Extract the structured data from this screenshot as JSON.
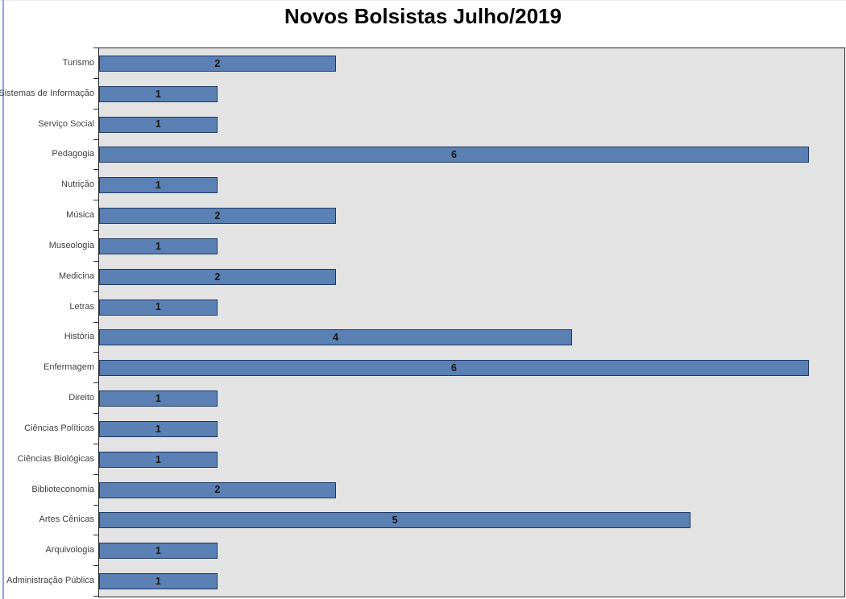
{
  "chart_data": {
    "type": "bar",
    "orientation": "horizontal",
    "title": "Novos Bolsistas Julho/2019",
    "categories": [
      "Turismo",
      "Sistemas de Informação",
      "Serviço Social",
      "Pedagogia",
      "Nutrição",
      "Música",
      "Museologia",
      "Medicina",
      "Letras",
      "História",
      "Enfermagem",
      "Direito",
      "Ciências Políticas",
      "Ciências Biológicas",
      "Biblioteconomia",
      "Artes Cênicas",
      "Arquivologia",
      "Administração Pública"
    ],
    "values": [
      2,
      1,
      1,
      6,
      1,
      2,
      1,
      2,
      1,
      4,
      6,
      1,
      1,
      1,
      2,
      5,
      1,
      1
    ],
    "xlim": [
      0,
      6.3
    ],
    "grid": false,
    "legend": false,
    "data_label_position": "center-inside-bar",
    "y_axis_ticks": "outward-at-category-boundaries",
    "x_axis_labels": "none-visible"
  },
  "style": {
    "bar_fill": "#5A80B4",
    "bar_border": "#1F3A64",
    "plot_bg": "#E3E3E3",
    "plot_border": "#2B2B2B",
    "axis_tick_color": "#2B2B2B",
    "chart_bg": "#FFFFFF",
    "outer_left_border": "#7FA8DC",
    "title_color": "#000000",
    "category_label_color": "#404040",
    "value_label_color": "#161616"
  }
}
